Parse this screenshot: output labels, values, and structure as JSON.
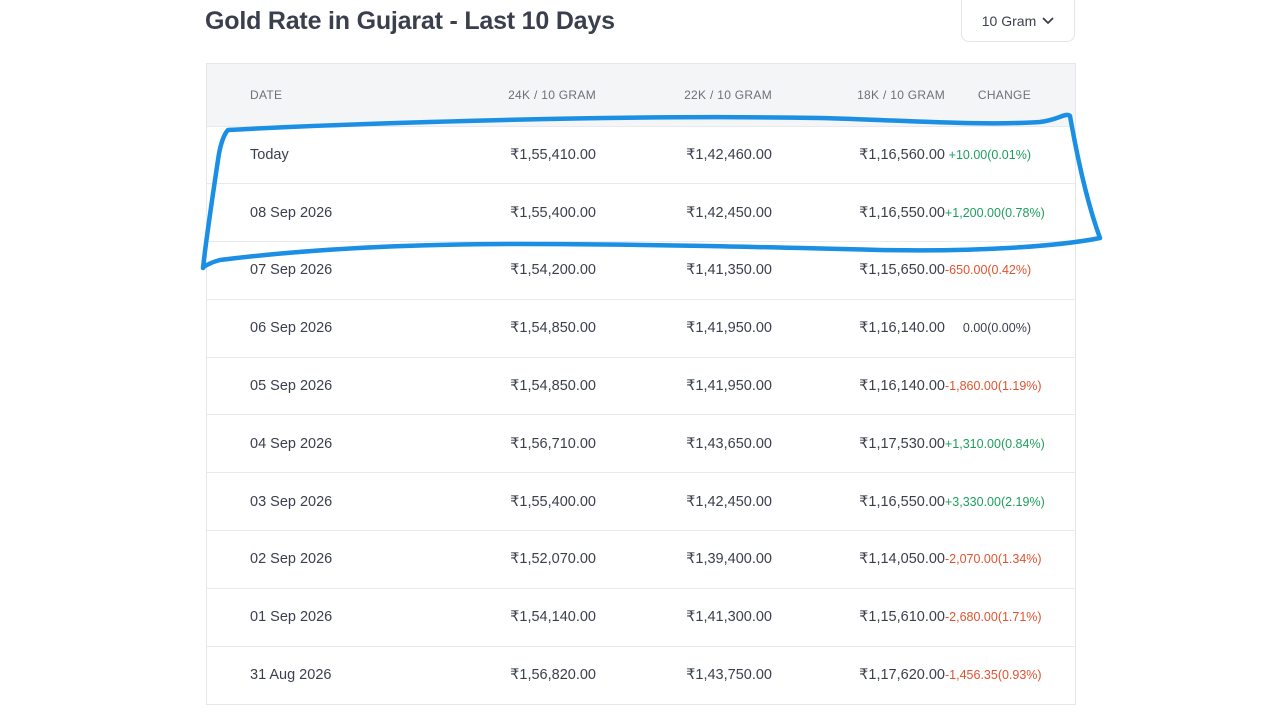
{
  "title": "Gold Rate in Gujarat - Last 10 Days",
  "unit_selector": {
    "selected": "10 Gram",
    "icon": "chevron-down-icon"
  },
  "table": {
    "headers": [
      "DATE",
      "24K / 10 GRAM",
      "22K / 10 GRAM",
      "18K / 10 GRAM",
      "CHANGE"
    ],
    "rows": [
      {
        "date": "Today",
        "k24": "₹1,55,410.00",
        "k22": "₹1,42,460.00",
        "k18": "₹1,16,560.00",
        "change": "+10.00(0.01%)",
        "trend": "up"
      },
      {
        "date": "08 Sep 2026",
        "k24": "₹1,55,400.00",
        "k22": "₹1,42,450.00",
        "k18": "₹1,16,550.00",
        "change": "+1,200.00(0.78%)",
        "trend": "up"
      },
      {
        "date": "07 Sep 2026",
        "k24": "₹1,54,200.00",
        "k22": "₹1,41,350.00",
        "k18": "₹1,15,650.00",
        "change": "-650.00(0.42%)",
        "trend": "down"
      },
      {
        "date": "06 Sep 2026",
        "k24": "₹1,54,850.00",
        "k22": "₹1,41,950.00",
        "k18": "₹1,16,140.00",
        "change": "0.00(0.00%)",
        "trend": "flat"
      },
      {
        "date": "05 Sep 2026",
        "k24": "₹1,54,850.00",
        "k22": "₹1,41,950.00",
        "k18": "₹1,16,140.00",
        "change": "-1,860.00(1.19%)",
        "trend": "down"
      },
      {
        "date": "04 Sep 2026",
        "k24": "₹1,56,710.00",
        "k22": "₹1,43,650.00",
        "k18": "₹1,17,530.00",
        "change": "+1,310.00(0.84%)",
        "trend": "up"
      },
      {
        "date": "03 Sep 2026",
        "k24": "₹1,55,400.00",
        "k22": "₹1,42,450.00",
        "k18": "₹1,16,550.00",
        "change": "+3,330.00(2.19%)",
        "trend": "up"
      },
      {
        "date": "02 Sep 2026",
        "k24": "₹1,52,070.00",
        "k22": "₹1,39,400.00",
        "k18": "₹1,14,050.00",
        "change": "-2,070.00(1.34%)",
        "trend": "down"
      },
      {
        "date": "01 Sep 2026",
        "k24": "₹1,54,140.00",
        "k22": "₹1,41,300.00",
        "k18": "₹1,15,610.00",
        "change": "-2,680.00(1.71%)",
        "trend": "down"
      },
      {
        "date": "31 Aug 2026",
        "k24": "₹1,56,820.00",
        "k22": "₹1,43,750.00",
        "k18": "₹1,17,620.00",
        "change": "-1,456.35(0.93%)",
        "trend": "down"
      }
    ]
  },
  "colors": {
    "up": "#1e9e5e",
    "down": "#e0532f",
    "highlight_stroke": "#1a8fe3"
  }
}
